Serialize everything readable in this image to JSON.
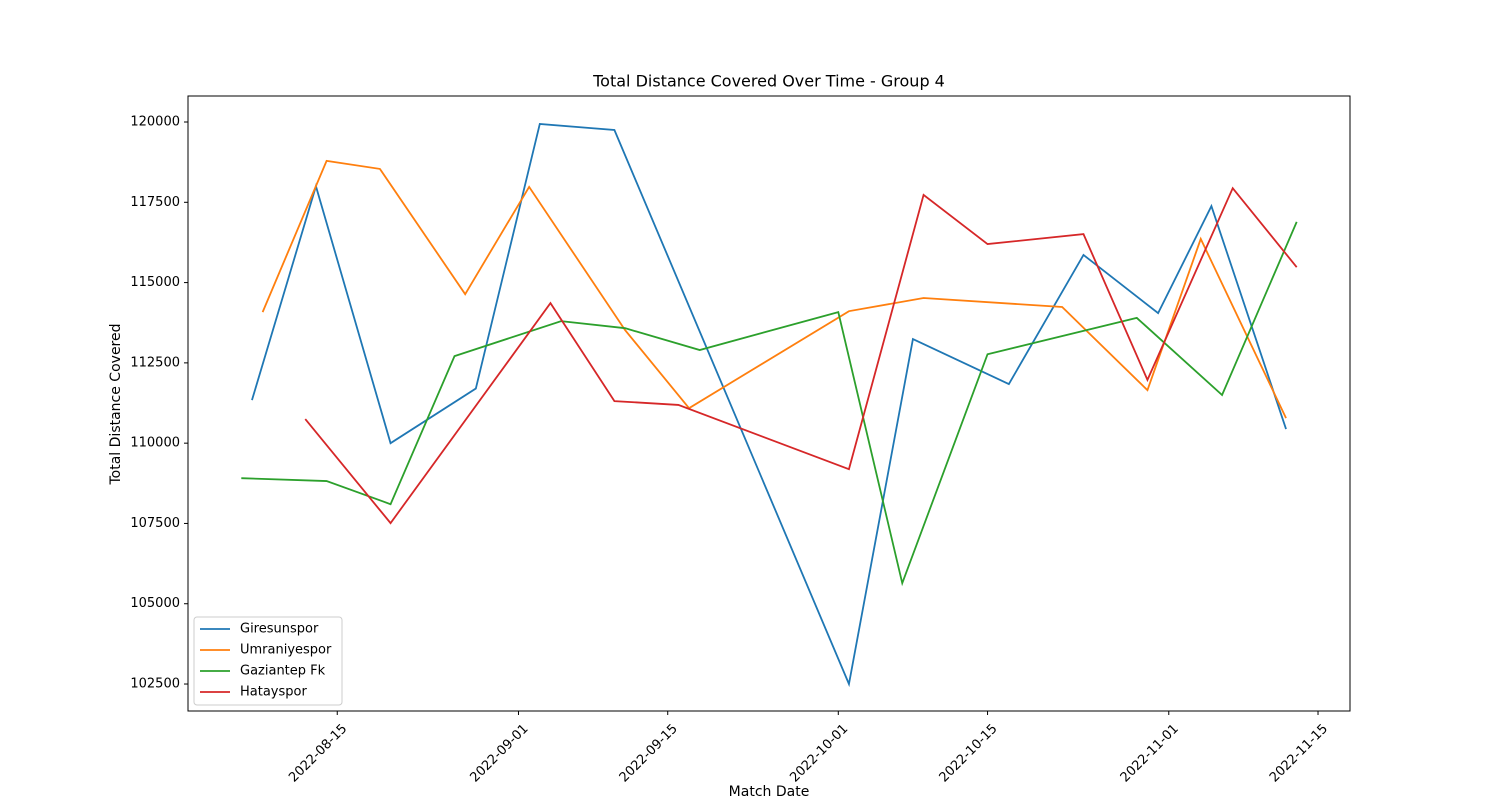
{
  "chart_data": {
    "type": "line",
    "title": "Total Distance Covered Over Time - Group 4",
    "x_label": "Match Date",
    "y_label": "Total Distance Covered",
    "xlim": [
      "2022-08-01",
      "2022-11-18"
    ],
    "xticks": [
      "2022-08-15",
      "2022-09-01",
      "2022-09-15",
      "2022-10-01",
      "2022-10-15",
      "2022-11-01",
      "2022-11-15"
    ],
    "ylim": [
      101660,
      120810
    ],
    "yticks": [
      102500,
      105000,
      107500,
      110000,
      112500,
      115000,
      117500,
      120000
    ],
    "legend": "lower left",
    "series": [
      {
        "name": "Giresunspor",
        "color": "#1f77b4",
        "x": [
          "2022-08-07",
          "2022-08-13",
          "2022-08-20",
          "2022-08-28",
          "2022-09-03",
          "2022-09-10",
          "2022-10-02",
          "2022-10-08",
          "2022-10-17",
          "2022-10-24",
          "2022-10-31",
          "2022-11-05",
          "2022-11-12"
        ],
        "values": [
          111340,
          118000,
          110000,
          111700,
          119940,
          119750,
          102500,
          113240,
          111840,
          115860,
          114050,
          117380,
          110440
        ]
      },
      {
        "name": "Umraniyespor",
        "color": "#ff7f0e",
        "x": [
          "2022-08-08",
          "2022-08-14",
          "2022-08-19",
          "2022-08-27",
          "2022-09-02",
          "2022-09-11",
          "2022-09-17",
          "2022-10-02",
          "2022-10-09",
          "2022-10-22",
          "2022-10-30",
          "2022-11-04",
          "2022-11-12"
        ],
        "values": [
          114080,
          118790,
          118540,
          114640,
          117980,
          113520,
          111090,
          114110,
          114520,
          114240,
          111650,
          116360,
          110780
        ]
      },
      {
        "name": "Gaziantep Fk",
        "color": "#2ca02c",
        "x": [
          "2022-08-06",
          "2022-08-14",
          "2022-08-20",
          "2022-08-26",
          "2022-09-05",
          "2022-09-11",
          "2022-09-18",
          "2022-10-01",
          "2022-10-07",
          "2022-10-15",
          "2022-10-29",
          "2022-11-06",
          "2022-11-13"
        ],
        "values": [
          108910,
          108820,
          108100,
          112710,
          113800,
          113580,
          112900,
          114080,
          105640,
          112770,
          113900,
          111500,
          116890
        ]
      },
      {
        "name": "Hatayspor",
        "color": "#d62728",
        "x": [
          "2022-08-12",
          "2022-08-20",
          "2022-09-04",
          "2022-09-10",
          "2022-09-16",
          "2022-10-02",
          "2022-10-09",
          "2022-10-15",
          "2022-10-24",
          "2022-10-30",
          "2022-11-07",
          "2022-11-13"
        ],
        "values": [
          110750,
          107510,
          114360,
          111310,
          111190,
          109190,
          117730,
          116200,
          116510,
          111970,
          117940,
          115480
        ]
      }
    ]
  }
}
